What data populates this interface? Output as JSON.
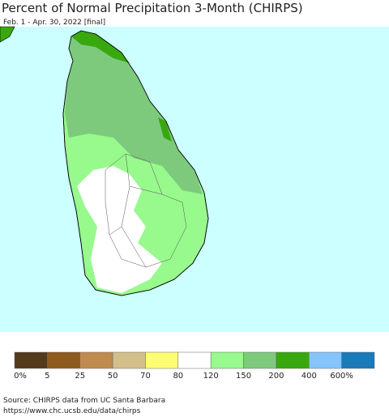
{
  "header": {
    "title": "Percent of Normal Precipitation 3-Month (CHIRPS)",
    "subtitle": "Feb. 1 - Apr. 30, 2022 [final]"
  },
  "legend": {
    "colors": [
      "#54391a",
      "#8e5a1d",
      "#c08b4f",
      "#d2bf8a",
      "#fdfd73",
      "#ffffff",
      "#98f98d",
      "#7dca7d",
      "#39a80e",
      "#85c5fc",
      "#1b7ab8"
    ],
    "labels": [
      "0%",
      "5",
      "25",
      "50",
      "70",
      "80",
      "120",
      "150",
      "200",
      "400",
      "600%"
    ]
  },
  "footer": {
    "source": "Source: CHIRPS data from UC Santa Barbara",
    "url": "https://www.chc.ucsb.edu/data/chirps"
  }
}
